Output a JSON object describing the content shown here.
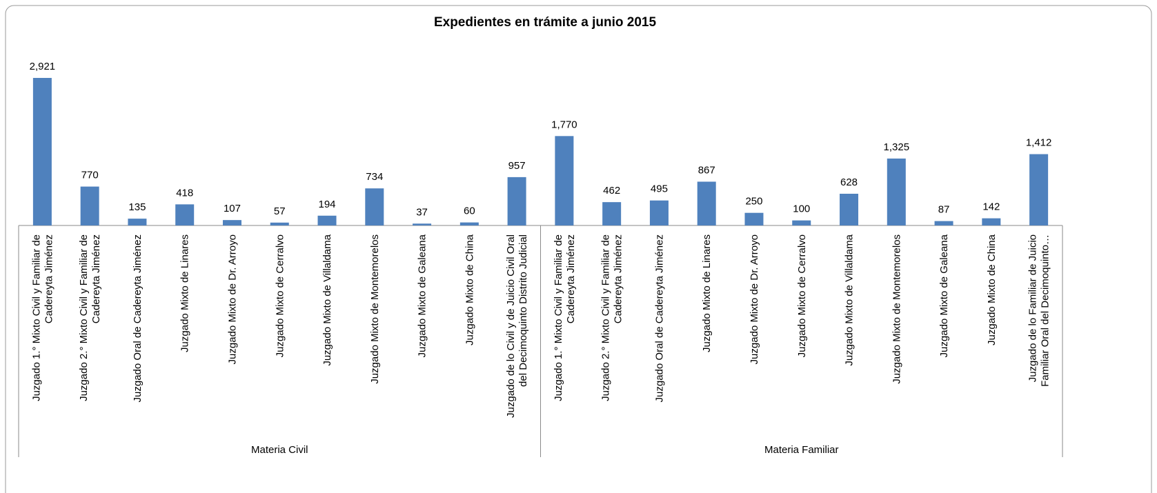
{
  "chart_data": {
    "type": "bar",
    "title": "Expedientes en trámite a junio 2015",
    "groups": [
      {
        "name": "Materia Civil",
        "size": 11
      },
      {
        "name": "Materia Familiar",
        "size": 11
      }
    ],
    "categories": [
      "Juzgado 1.° Mixto Civil y Familiar de\nCadereyta Jiménez",
      "Juzgado 2.° Mixto Civil y Familiar de\nCadereyta Jiménez",
      "Juzgado Oral de Cadereyta Jiménez",
      "Juzgado Mixto de Linares",
      "Juzgado Mixto de Dr. Arroyo",
      "Juzgado Mixto de Cerralvo",
      "Juzgado Mixto de Villaldama",
      "Juzgado Mixto de Montemorelos",
      "Juzgado Mixto de Galeana",
      "Juzgado Mixto de China",
      "Juzgado de lo Civil y de Juicio Civil Oral\ndel Decimoquinto Distrito Judicial",
      "Juzgado 1.° Mixto Civil y Familiar de\nCadereyta Jiménez",
      "Juzgado 2.° Mixto Civil y Familiar de\nCadereyta Jiménez",
      "Juzgado Oral de Cadereyta Jiménez",
      "Juzgado Mixto de Linares",
      "Juzgado Mixto de Dr. Arroyo",
      "Juzgado Mixto de Cerralvo",
      "Juzgado Mixto de Villaldama",
      "Juzgado Mixto de Montemorelos",
      "Juzgado Mixto de Galeana",
      "Juzgado Mixto de China",
      "Juzgado de lo Familiar de Juicio\nFamiliar Oral del Decimoquinto…"
    ],
    "values": [
      2921,
      770,
      135,
      418,
      107,
      57,
      194,
      734,
      37,
      60,
      957,
      1770,
      462,
      495,
      867,
      250,
      100,
      628,
      1325,
      87,
      142,
      1412
    ],
    "value_labels": [
      "2,921",
      "770",
      "135",
      "418",
      "107",
      "57",
      "194",
      "734",
      "37",
      "60",
      "957",
      "1,770",
      "462",
      "495",
      "867",
      "250",
      "100",
      "628",
      "1,325",
      "87",
      "142",
      "1,412"
    ],
    "color": "#4f81bd"
  }
}
